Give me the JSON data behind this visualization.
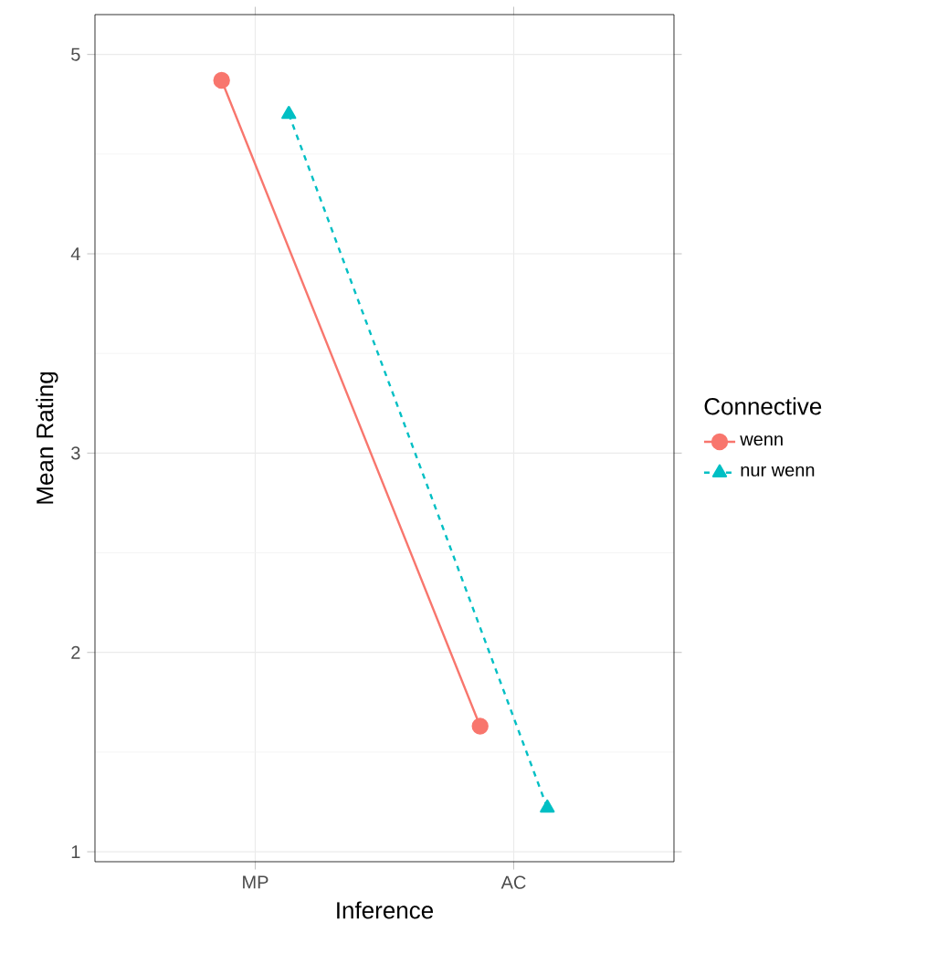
{
  "chart_data": {
    "type": "line",
    "xlabel": "Inference",
    "ylabel": "Mean Rating",
    "legend_title": "Connective",
    "categories": [
      "MP",
      "AC"
    ],
    "series": [
      {
        "name": "wenn",
        "color": "#f8766d",
        "values": [
          4.87,
          1.63
        ],
        "marker": "circle",
        "line_style": "solid"
      },
      {
        "name": "nur wenn",
        "color": "#00bfc4",
        "values": [
          4.7,
          1.22
        ],
        "marker": "triangle",
        "line_style": "dashed"
      }
    ],
    "ylim": [
      0.95,
      5.2
    ],
    "yticks": [
      1,
      2,
      3,
      4,
      5
    ],
    "grid": true,
    "legend": "right"
  }
}
